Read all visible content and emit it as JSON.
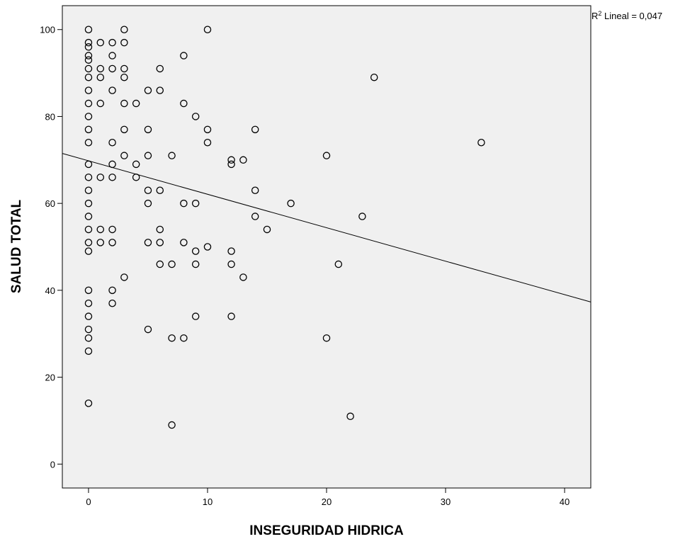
{
  "chart_data": {
    "type": "scatter",
    "xlabel": "INSEGURIDAD HIDRICA",
    "ylabel": "SALUD TOTAL",
    "xlim": [
      -2.2,
      42.2
    ],
    "ylim": [
      -5.5,
      105.5
    ],
    "x_ticks": [
      0,
      10,
      20,
      30,
      40
    ],
    "y_ticks": [
      0,
      20,
      40,
      60,
      80,
      100
    ],
    "grid": false,
    "background": "#f0f0f0",
    "marker": "open-circle",
    "fit_line": {
      "label_prefix": "R",
      "label_sup": "2",
      "label_rest": " Lineal = 0,047",
      "intercept": 69.8,
      "slope": -0.77
    },
    "points": [
      [
        0,
        100
      ],
      [
        0,
        97
      ],
      [
        0,
        96
      ],
      [
        0,
        94
      ],
      [
        0,
        93
      ],
      [
        0,
        91
      ],
      [
        0,
        89
      ],
      [
        0,
        86
      ],
      [
        0,
        83
      ],
      [
        0,
        80
      ],
      [
        0,
        77
      ],
      [
        0,
        74
      ],
      [
        0,
        69
      ],
      [
        0,
        66
      ],
      [
        0,
        63
      ],
      [
        0,
        60
      ],
      [
        0,
        57
      ],
      [
        0,
        54
      ],
      [
        0,
        51
      ],
      [
        0,
        49
      ],
      [
        0,
        40
      ],
      [
        0,
        37
      ],
      [
        0,
        34
      ],
      [
        0,
        31
      ],
      [
        0,
        29
      ],
      [
        0,
        26
      ],
      [
        0,
        14
      ],
      [
        1,
        97
      ],
      [
        1,
        91
      ],
      [
        1,
        89
      ],
      [
        1,
        83
      ],
      [
        1,
        66
      ],
      [
        1,
        54
      ],
      [
        1,
        51
      ],
      [
        2,
        97
      ],
      [
        2,
        94
      ],
      [
        2,
        91
      ],
      [
        2,
        86
      ],
      [
        2,
        74
      ],
      [
        2,
        69
      ],
      [
        2,
        66
      ],
      [
        2,
        54
      ],
      [
        2,
        51
      ],
      [
        2,
        40
      ],
      [
        2,
        37
      ],
      [
        3,
        100
      ],
      [
        3,
        97
      ],
      [
        3,
        91
      ],
      [
        3,
        89
      ],
      [
        3,
        83
      ],
      [
        3,
        77
      ],
      [
        3,
        71
      ],
      [
        3,
        43
      ],
      [
        4,
        83
      ],
      [
        4,
        69
      ],
      [
        4,
        66
      ],
      [
        5,
        86
      ],
      [
        5,
        77
      ],
      [
        5,
        71
      ],
      [
        5,
        63
      ],
      [
        5,
        60
      ],
      [
        5,
        51
      ],
      [
        5,
        31
      ],
      [
        6,
        91
      ],
      [
        6,
        86
      ],
      [
        6,
        63
      ],
      [
        6,
        54
      ],
      [
        6,
        51
      ],
      [
        6,
        46
      ],
      [
        7,
        71
      ],
      [
        7,
        46
      ],
      [
        7,
        29
      ],
      [
        7,
        9
      ],
      [
        8,
        94
      ],
      [
        8,
        83
      ],
      [
        8,
        60
      ],
      [
        8,
        51
      ],
      [
        8,
        29
      ],
      [
        9,
        80
      ],
      [
        9,
        60
      ],
      [
        9,
        49
      ],
      [
        9,
        46
      ],
      [
        9,
        34
      ],
      [
        10,
        100
      ],
      [
        10,
        77
      ],
      [
        10,
        74
      ],
      [
        10,
        50
      ],
      [
        12,
        70
      ],
      [
        12,
        69
      ],
      [
        12,
        49
      ],
      [
        12,
        46
      ],
      [
        12,
        34
      ],
      [
        13,
        70
      ],
      [
        13,
        43
      ],
      [
        14,
        77
      ],
      [
        14,
        63
      ],
      [
        14,
        57
      ],
      [
        15,
        54
      ],
      [
        17,
        60
      ],
      [
        20,
        71
      ],
      [
        20,
        29
      ],
      [
        21,
        46
      ],
      [
        22,
        11
      ],
      [
        23,
        57
      ],
      [
        24,
        89
      ],
      [
        33,
        74
      ]
    ]
  }
}
